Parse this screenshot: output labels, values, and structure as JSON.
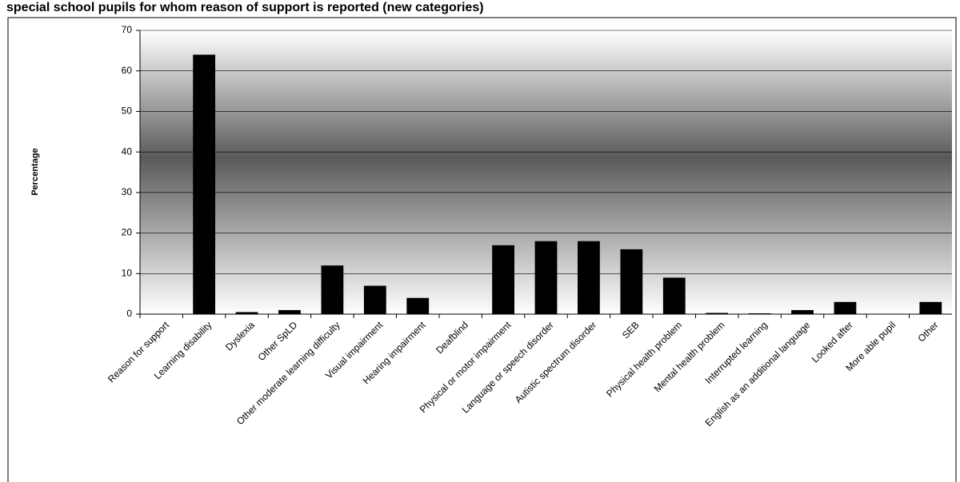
{
  "chart_data": {
    "type": "bar",
    "title": "special school pupils for whom reason of support is reported (new categories)",
    "y_label": "Percentage",
    "categories": [
      "Reason for support",
      "Learning disability",
      "Dyslexia",
      "Other SpLD",
      "Other moderate learning difficulty",
      "Visual impairment",
      "Hearing impairment",
      "Deafblind",
      "Physical or motor impairment",
      "Language or speech disorder",
      "Autistic spectrum disorder",
      "SEB",
      "Physical health problem",
      "Mental health problem",
      "Interrupted learning",
      "English as an additional language",
      "Looked after",
      "More able pupil",
      "Other"
    ],
    "values": [
      0,
      64,
      0.5,
      1,
      12,
      7,
      4,
      0,
      17,
      18,
      18,
      16,
      9,
      0.3,
      0.2,
      1,
      3,
      0,
      3
    ],
    "color": "#000000",
    "ylim": [
      0,
      70
    ],
    "yticks": [
      0,
      10,
      20,
      30,
      40,
      50,
      60,
      70
    ],
    "grid": true
  }
}
